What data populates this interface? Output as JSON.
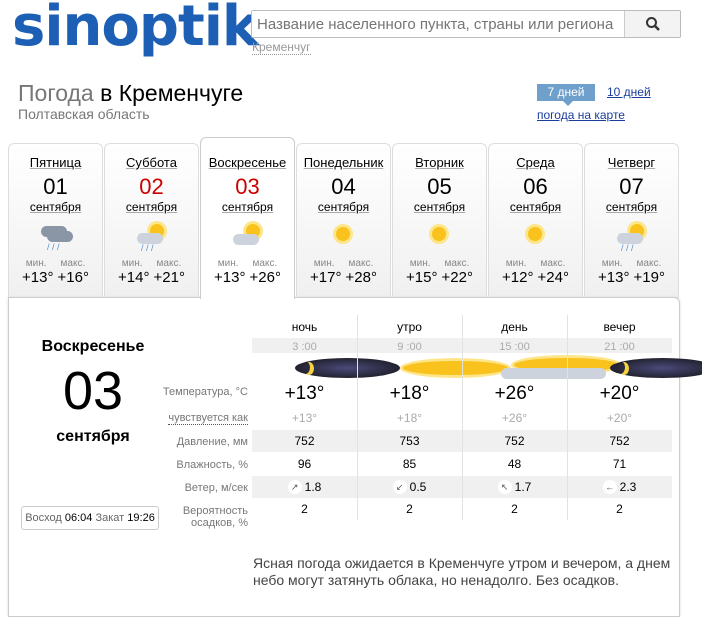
{
  "logo": "sinoptik",
  "search": {
    "placeholder": "Название населенного пункта, страны или региона",
    "recent": "Кременчуг"
  },
  "title": {
    "prefix": "Погода",
    "city": "в Кременчуге",
    "region": "Полтавская область"
  },
  "nav": {
    "days7": "7 дней",
    "days10": "10 дней",
    "map": "погода на карте"
  },
  "min_label": "мин.",
  "max_label": "макс.",
  "days": [
    {
      "name": "Пятница",
      "date": "01",
      "month": "сентября",
      "min": "+13°",
      "max": "+16°",
      "icon": "cloud-rain-icon",
      "red": false
    },
    {
      "name": "Суббота",
      "date": "02",
      "month": "сентября",
      "min": "+14°",
      "max": "+21°",
      "icon": "sun-cloud-rain-icon",
      "red": true
    },
    {
      "name": "Воскресенье",
      "date": "03",
      "month": "сентября",
      "min": "+13°",
      "max": "+26°",
      "icon": "sun-cloud-icon",
      "red": true
    },
    {
      "name": "Понедельник",
      "date": "04",
      "month": "сентября",
      "min": "+17°",
      "max": "+28°",
      "icon": "sun-icon",
      "red": false
    },
    {
      "name": "Вторник",
      "date": "05",
      "month": "сентября",
      "min": "+15°",
      "max": "+22°",
      "icon": "sun-icon",
      "red": false
    },
    {
      "name": "Среда",
      "date": "06",
      "month": "сентября",
      "min": "+12°",
      "max": "+24°",
      "icon": "sun-icon",
      "red": false
    },
    {
      "name": "Четверг",
      "date": "07",
      "month": "сентября",
      "min": "+13°",
      "max": "+19°",
      "icon": "sun-cloud-rain-icon",
      "red": false
    }
  ],
  "detail": {
    "day": "Воскресенье",
    "date": "03",
    "month": "сентября",
    "sunrise_label": "Восход",
    "sunrise": "06:04",
    "sunset_label": "Закат",
    "sunset": "19:26",
    "labels": {
      "temp": "Температура, °C",
      "feels": "чувствуется как",
      "pressure": "Давление, мм",
      "humidity": "Влажность, %",
      "wind": "Ветер, м/сек",
      "precip": "Вероятность осадков, %"
    },
    "periods": [
      {
        "name": "ночь",
        "time": "3 :00",
        "icon": "moon-icon",
        "temp": "+13°",
        "feels": "+13°",
        "pressure": "752",
        "humidity": "96",
        "wind_dir": "↗",
        "wind": "1.8",
        "precip": "2"
      },
      {
        "name": "утро",
        "time": "9 :00",
        "icon": "sun-icon",
        "temp": "+18°",
        "feels": "+18°",
        "pressure": "753",
        "humidity": "85",
        "wind_dir": "↙",
        "wind": "0.5",
        "precip": "2"
      },
      {
        "name": "день",
        "time": "15 :00",
        "icon": "sun-cloud-icon",
        "temp": "+26°",
        "feels": "+26°",
        "pressure": "752",
        "humidity": "48",
        "wind_dir": "↖",
        "wind": "1.7",
        "precip": "2"
      },
      {
        "name": "вечер",
        "time": "21 :00",
        "icon": "moon-icon",
        "temp": "+20°",
        "feels": "+20°",
        "pressure": "752",
        "humidity": "71",
        "wind_dir": "←",
        "wind": "2.3",
        "precip": "2"
      }
    ],
    "description": "Ясная погода ожидается в Кременчуге утром и вечером, а днем небо могут затянуть облака, но ненадолго. Без осадков."
  }
}
